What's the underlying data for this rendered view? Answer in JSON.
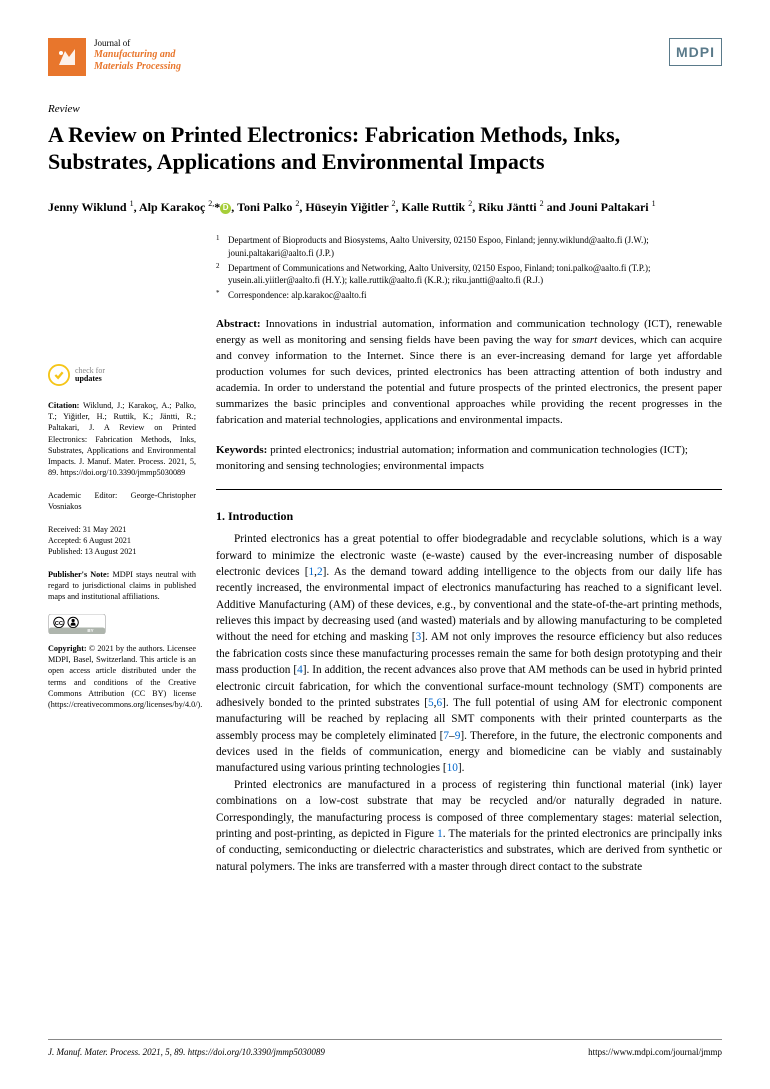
{
  "journal": {
    "prefix": "Journal of",
    "name_line1": "Manufacturing and",
    "name_line2": "Materials Processing",
    "publisher_logo": "MDPI",
    "brand_color": "#e8762c"
  },
  "article": {
    "type": "Review",
    "title": "A Review on Printed Electronics: Fabrication Methods, Inks, Substrates, Applications and Environmental Impacts",
    "authors_html": "Jenny Wiklund <sup>1</sup>, Alp Karakoç <sup>2,</sup>* , Toni Palko <sup>2</sup>, Hüseyin Yiğitler <sup>2</sup>, Kalle Ruttik <sup>2</sup>, Riku Jäntti <sup>2</sup> and Jouni Paltakari <sup>1</sup>"
  },
  "affiliations": [
    {
      "num": "1",
      "text": "Department of Bioproducts and Biosystems, Aalto University, 02150 Espoo, Finland; jenny.wiklund@aalto.fi (J.W.); jouni.paltakari@aalto.fi (J.P.)"
    },
    {
      "num": "2",
      "text": "Department of Communications and Networking, Aalto University, 02150 Espoo, Finland; toni.palko@aalto.fi (T.P.); yusein.ali.yiitler@aalto.fi (H.Y.); kalle.ruttik@aalto.fi (K.R.); riku.jantti@aalto.fi (R.J.)"
    },
    {
      "num": "*",
      "text": "Correspondence: alp.karakoc@aalto.fi"
    }
  ],
  "abstract": {
    "label": "Abstract:",
    "text": "Innovations in industrial automation, information and communication technology (ICT), renewable energy as well as monitoring and sensing fields have been paving the way for smart devices, which can acquire and convey information to the Internet. Since there is an ever-increasing demand for large yet affordable production volumes for such devices, printed electronics has been attracting attention of both industry and academia. In order to understand the potential and future prospects of the printed electronics, the present paper summarizes the basic principles and conventional approaches while providing the recent progresses in the fabrication and material technologies, applications and environmental impacts."
  },
  "keywords": {
    "label": "Keywords:",
    "text": "printed electronics; industrial automation; information and communication technologies (ICT); monitoring and sensing technologies; environmental impacts"
  },
  "section1": {
    "heading": "1. Introduction",
    "para1_parts": [
      "Printed electronics has a great potential to offer biodegradable and recyclable solutions, which is a way forward to minimize the electronic waste (e-waste) caused by the ever-increasing number of disposable electronic devices [",
      "1",
      ",",
      "2",
      "]. As the demand toward adding intelligence to the objects from our daily life has recently increased, the environmental impact of electronics manufacturing has reached to a significant level. Additive Manufacturing (AM) of these devices, e.g., by conventional and the state-of-the-art printing methods, relieves this impact by decreasing used (and wasted) materials and by allowing manufacturing to be completed without the need for etching and masking [",
      "3",
      "]. AM not only improves the resource efficiency but also reduces the fabrication costs since these manufacturing processes remain the same for both design prototyping and their mass production [",
      "4",
      "]. In addition, the recent advances also prove that AM methods can be used in hybrid printed electronic circuit fabrication, for which the conventional surface-mount technology (SMT) components are adhesively bonded to the printed substrates [",
      "5",
      ",",
      "6",
      "]. The full potential of using AM for electronic component manufacturing will be reached by replacing all SMT components with their printed counterparts as the assembly process may be completely eliminated [",
      "7",
      "–",
      "9",
      "]. Therefore, in the future, the electronic components and devices used in the fields of communication, energy and biomedicine can be viably and sustainably manufactured using various printing technologies [",
      "10",
      "]."
    ],
    "para2_parts": [
      "Printed electronics are manufactured in a process of registering thin functional material (ink) layer combinations on a low-cost substrate that may be recycled and/or naturally degraded in nature. Correspondingly, the manufacturing process is composed of three complementary stages: material selection, printing and post-printing, as depicted in Figure ",
      "1",
      ". The materials for the printed electronics are principally inks of conducting, semiconducting or dielectric characteristics and substrates, which are derived from synthetic or natural polymers. The inks are transferred with a master through direct contact to the substrate"
    ]
  },
  "sidebar": {
    "check_for": "check for",
    "updates": "updates",
    "citation_label": "Citation:",
    "citation": "Wiklund, J.; Karakoç, A.; Palko, T.; Yiğitler, H.; Ruttik, K.; Jäntti, R.; Paltakari, J. A Review on Printed Electronics: Fabrication Methods, Inks, Substrates, Applications and Environmental Impacts. J. Manuf. Mater. Process. 2021, 5, 89. https://doi.org/10.3390/jmmp5030089",
    "editor_label": "Academic Editor:",
    "editor": "George-Christopher Vosniakos",
    "received": "Received: 31 May 2021",
    "accepted": "Accepted: 6 August 2021",
    "published": "Published: 13 August 2021",
    "pubnote_label": "Publisher's Note:",
    "pubnote": "MDPI stays neutral with regard to jurisdictional claims in published maps and institutional affiliations.",
    "copyright_label": "Copyright:",
    "copyright": "© 2021 by the authors. Licensee MDPI, Basel, Switzerland. This article is an open access article distributed under the terms and conditions of the Creative Commons Attribution (CC BY) license (https://creativecommons.org/licenses/by/4.0/)."
  },
  "footer": {
    "left": "J. Manuf. Mater. Process. 2021, 5, 89. https://doi.org/10.3390/jmmp5030089",
    "right": "https://www.mdpi.com/journal/jmmp"
  }
}
